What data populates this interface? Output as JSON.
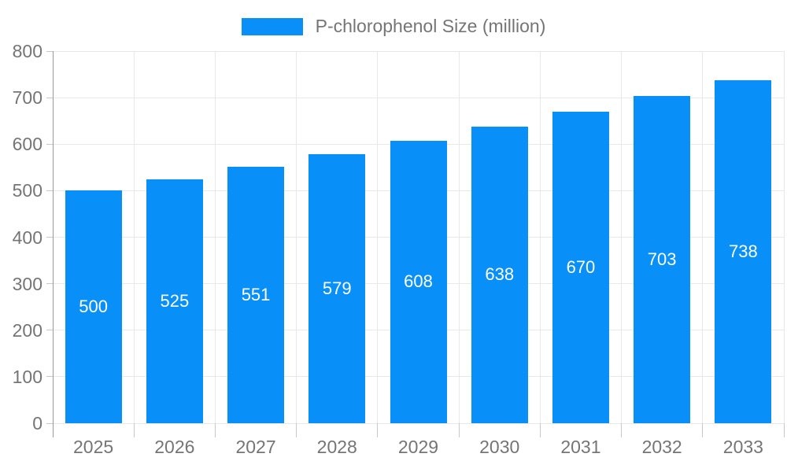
{
  "chart_data": {
    "type": "bar",
    "title": "",
    "legend": "P-chlorophenol Size (million)",
    "legend_position": "top-center",
    "categories": [
      "2025",
      "2026",
      "2027",
      "2028",
      "2029",
      "2030",
      "2031",
      "2032",
      "2033"
    ],
    "values": [
      500,
      525,
      551,
      579,
      608,
      638,
      670,
      703,
      738
    ],
    "xlabel": "",
    "ylabel": "",
    "ylim": [
      0,
      800
    ],
    "yticks": [
      0,
      100,
      200,
      300,
      400,
      500,
      600,
      700,
      800
    ],
    "grid": true,
    "colors": {
      "bar": "#0890F8",
      "bar_label": "#ffffff",
      "axis_text": "#757575",
      "axis_line": "#999999",
      "gridline": "#e8e8e8",
      "tick": "#c9c9c9",
      "background": "#ffffff"
    }
  }
}
